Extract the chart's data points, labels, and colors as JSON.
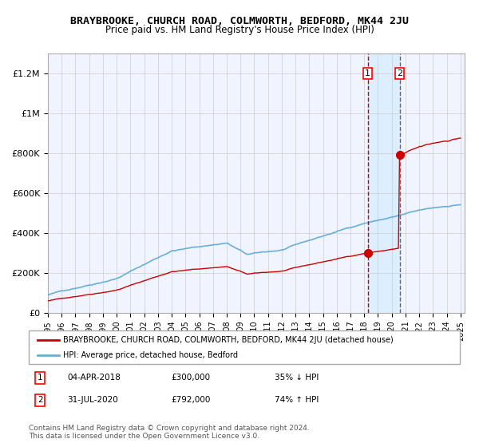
{
  "title": "BRAYBROOKE, CHURCH ROAD, COLMWORTH, BEDFORD, MK44 2JU",
  "subtitle": "Price paid vs. HM Land Registry's House Price Index (HPI)",
  "xlabel": "",
  "ylabel": "",
  "ylim": [
    0,
    1300000
  ],
  "yticks": [
    0,
    200000,
    400000,
    600000,
    800000,
    1000000,
    1200000
  ],
  "ytick_labels": [
    "£0",
    "£200K",
    "£400K",
    "£600K",
    "£800K",
    "£1M",
    "£1.2M"
  ],
  "hpi_color": "#6baed6",
  "price_color": "#cc0000",
  "sale1_date": 2018.25,
  "sale1_price": 300000,
  "sale2_date": 2020.58,
  "sale2_price": 792000,
  "sale1_label": "04-APR-2018",
  "sale1_amount": "£300,000",
  "sale1_pct": "35% ↓ HPI",
  "sale2_label": "31-JUL-2020",
  "sale2_amount": "£792,000",
  "sale2_pct": "74% ↑ HPI",
  "legend_label1": "BRAYBROOKE, CHURCH ROAD, COLMWORTH, BEDFORD, MK44 2JU (detached house)",
  "legend_label2": "HPI: Average price, detached house, Bedford",
  "footnote": "Contains HM Land Registry data © Crown copyright and database right 2024.\nThis data is licensed under the Open Government Licence v3.0.",
  "background_color": "#ffffff",
  "plot_bg_color": "#f0f4ff",
  "grid_color": "#cccccc",
  "shade_color": "#ddeeff"
}
